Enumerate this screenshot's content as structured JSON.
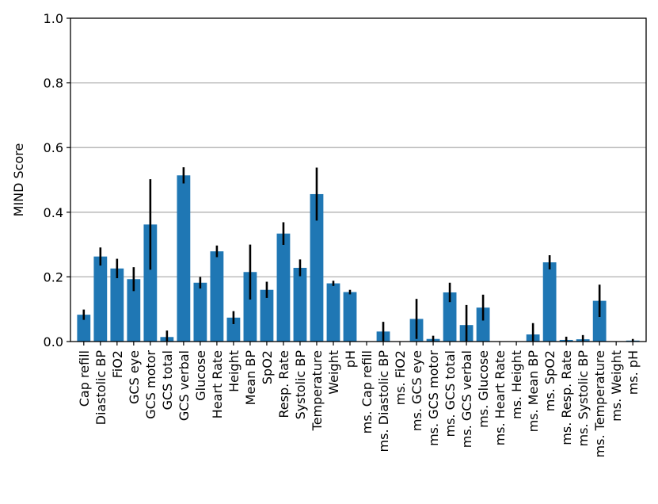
{
  "chart_data": {
    "type": "bar",
    "title": "",
    "xlabel": "",
    "ylabel": "MIND Score",
    "ylim": [
      0,
      1.0
    ],
    "yticks": [
      "0.0",
      "0.2",
      "0.4",
      "0.6",
      "0.8",
      "1.0"
    ],
    "ytick_values": [
      0,
      0.2,
      0.4,
      0.6,
      0.8,
      1.0
    ],
    "grid": "horizontal",
    "bar_color": "#1f77b4",
    "errorbar_color": "#000000",
    "categories": [
      "Cap refill",
      "Diastolic BP",
      "FiO2",
      "GCS eye",
      "GCS motor",
      "GCS total",
      "GCS verbal",
      "Glucose",
      "Heart Rate",
      "Height",
      "Mean BP",
      "SpO2",
      "Resp. Rate",
      "Systolic BP",
      "Temperature",
      "Weight",
      "pH",
      "ms. Cap refill",
      "ms. Diastolic BP",
      "ms. FiO2",
      "ms. GCS eye",
      "ms. GCS motor",
      "ms. GCS total",
      "ms. GCS verbal",
      "ms. Glucose",
      "ms. Heart Rate",
      "ms. Height",
      "ms. Mean BP",
      "ms. SpO2",
      "ms. Resp. Rate",
      "ms. Systolic BP",
      "ms. Temperature",
      "ms. Weight",
      "ms. pH"
    ],
    "values": [
      0.083,
      0.263,
      0.226,
      0.193,
      0.362,
      0.014,
      0.514,
      0.182,
      0.279,
      0.074,
      0.215,
      0.16,
      0.334,
      0.228,
      0.456,
      0.18,
      0.153,
      0.0,
      0.031,
      0.0,
      0.07,
      0.008,
      0.152,
      0.051,
      0.105,
      0.0,
      0.0,
      0.022,
      0.245,
      0.005,
      0.007,
      0.126,
      0.0,
      0.003
    ],
    "errors": [
      0.016,
      0.028,
      0.03,
      0.037,
      0.14,
      0.02,
      0.025,
      0.018,
      0.018,
      0.02,
      0.085,
      0.025,
      0.035,
      0.026,
      0.082,
      0.008,
      0.007,
      0.0,
      0.03,
      0.0,
      0.062,
      0.01,
      0.03,
      0.062,
      0.04,
      0.0,
      0.0,
      0.035,
      0.022,
      0.01,
      0.013,
      0.05,
      0.0,
      0.005
    ]
  }
}
